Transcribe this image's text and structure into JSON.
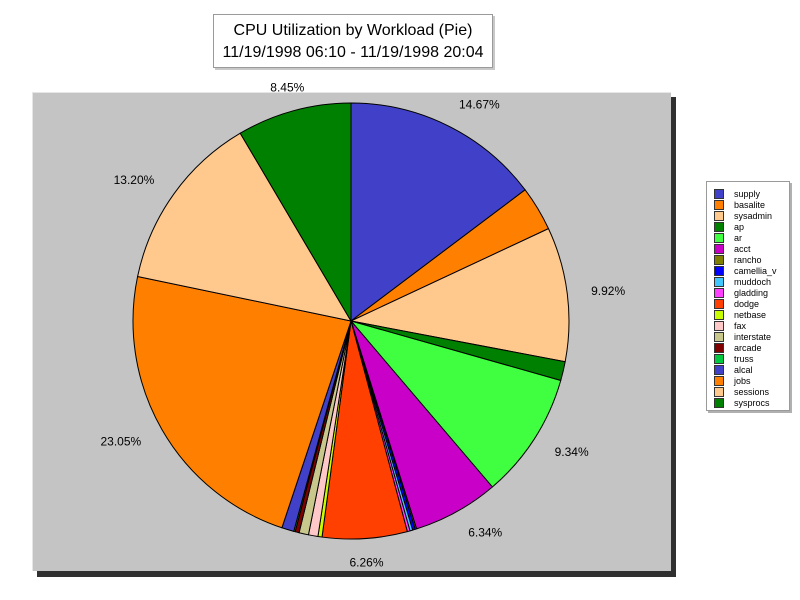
{
  "chart_data": {
    "type": "pie",
    "title": "CPU Utilization by Workload (Pie)",
    "subtitle": "11/19/1998 06:10 - 11/19/1998 20:04",
    "slices": [
      {
        "name": "supply",
        "value": 14.67,
        "label": "14.67%",
        "color": "#4040c8"
      },
      {
        "name": "basalite",
        "value": 3.3,
        "label": "",
        "color": "#ff8000"
      },
      {
        "name": "sysadmin",
        "value": 9.92,
        "label": "9.92%",
        "color": "#ffc88c"
      },
      {
        "name": "ap",
        "value": 1.4,
        "label": "",
        "color": "#008000"
      },
      {
        "name": "ar",
        "value": 9.34,
        "label": "9.34%",
        "color": "#40ff40"
      },
      {
        "name": "acct",
        "value": 6.34,
        "label": "6.34%",
        "color": "#c800c8"
      },
      {
        "name": "rancho",
        "value": 0.1,
        "label": "",
        "color": "#808000"
      },
      {
        "name": "camellia_v",
        "value": 0.2,
        "label": "",
        "color": "#0000ff"
      },
      {
        "name": "muddoch",
        "value": 0.2,
        "label": "",
        "color": "#40c8ff"
      },
      {
        "name": "gladding",
        "value": 0.2,
        "label": "",
        "color": "#ff40ff"
      },
      {
        "name": "dodge",
        "value": 6.26,
        "label": "6.26%",
        "color": "#ff4000"
      },
      {
        "name": "netbase",
        "value": 0.3,
        "label": "",
        "color": "#c8ff00"
      },
      {
        "name": "fax",
        "value": 0.7,
        "label": "",
        "color": "#ffc8c8"
      },
      {
        "name": "interstate",
        "value": 0.7,
        "label": "",
        "color": "#c8c88c"
      },
      {
        "name": "arcade",
        "value": 0.3,
        "label": "",
        "color": "#800000"
      },
      {
        "name": "truss",
        "value": 0.1,
        "label": "",
        "color": "#00c840"
      },
      {
        "name": "alcal",
        "value": 0.9,
        "label": "",
        "color": "#4040c8"
      },
      {
        "name": "jobs",
        "value": 23.05,
        "label": "23.05%",
        "color": "#ff8000"
      },
      {
        "name": "sessions",
        "value": 13.2,
        "label": "13.20%",
        "color": "#ffc88c"
      },
      {
        "name": "sysprocs",
        "value": 8.45,
        "label": "8.45%",
        "color": "#008000"
      }
    ],
    "start_angle": "12 o'clock, clockwise",
    "legend_position": "right"
  },
  "legend": {
    "items": [
      {
        "name": "supply",
        "color": "#4040c8"
      },
      {
        "name": "basalite",
        "color": "#ff8000"
      },
      {
        "name": "sysadmin",
        "color": "#ffc88c"
      },
      {
        "name": "ap",
        "color": "#008000"
      },
      {
        "name": "ar",
        "color": "#40ff40"
      },
      {
        "name": "acct",
        "color": "#c800c8"
      },
      {
        "name": "rancho",
        "color": "#808000"
      },
      {
        "name": "camellia_v",
        "color": "#0000ff"
      },
      {
        "name": "muddoch",
        "color": "#40c8ff"
      },
      {
        "name": "gladding",
        "color": "#ff40ff"
      },
      {
        "name": "dodge",
        "color": "#ff4000"
      },
      {
        "name": "netbase",
        "color": "#c8ff00"
      },
      {
        "name": "fax",
        "color": "#ffc8c8"
      },
      {
        "name": "interstate",
        "color": "#c8c88c"
      },
      {
        "name": "arcade",
        "color": "#800000"
      },
      {
        "name": "truss",
        "color": "#00c840"
      },
      {
        "name": "alcal",
        "color": "#4040c8"
      },
      {
        "name": "jobs",
        "color": "#ff8000"
      },
      {
        "name": "sessions",
        "color": "#ffc88c"
      },
      {
        "name": "sysprocs",
        "color": "#008000"
      }
    ]
  }
}
